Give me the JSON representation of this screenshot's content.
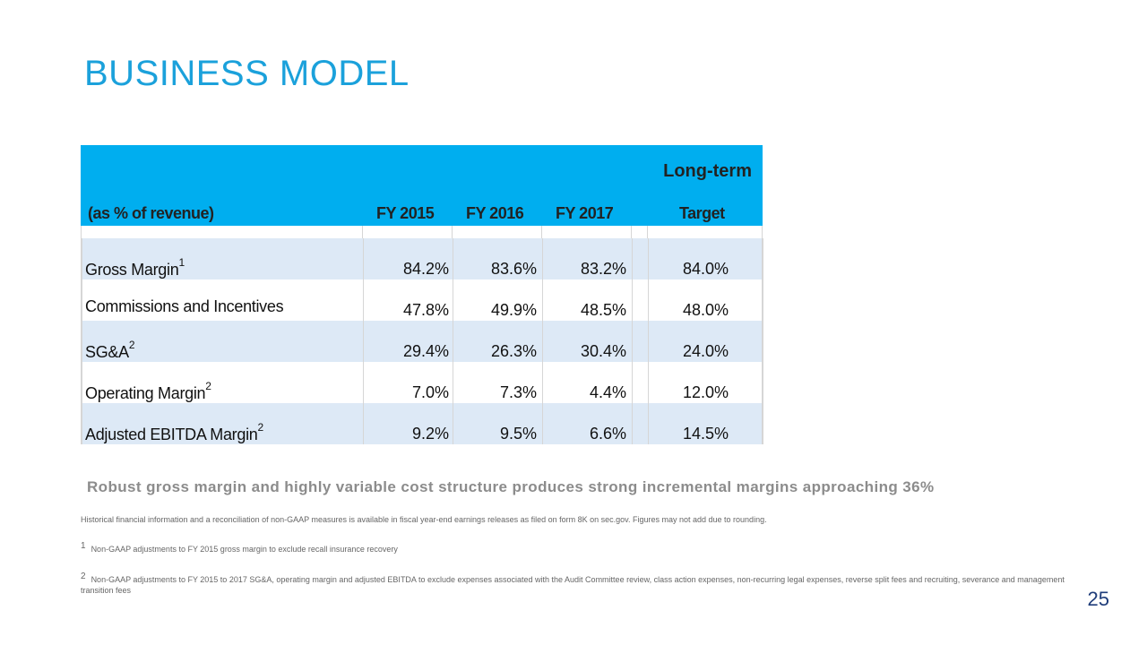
{
  "slide": {
    "title": "BUSINESS MODEL",
    "page_number": "25"
  },
  "table": {
    "long_term_label": "Long-term",
    "header": {
      "row_label": "(as % of revenue)",
      "col1": "FY 2015",
      "col2": "FY 2016",
      "col3": "FY 2017",
      "col4": "Target"
    },
    "rows": [
      {
        "label": "Gross Margin",
        "footnote": "1",
        "fy2015": "84.2%",
        "fy2016": "83.6%",
        "fy2017": "83.2%",
        "target": "84.0%"
      },
      {
        "label": "Commissions and Incentives",
        "footnote": "",
        "fy2015": "47.8%",
        "fy2016": "49.9%",
        "fy2017": "48.5%",
        "target": "48.0%"
      },
      {
        "label": "SG&A",
        "footnote": "2",
        "fy2015": "29.4%",
        "fy2016": "26.3%",
        "fy2017": "30.4%",
        "target": "24.0%"
      },
      {
        "label": "Operating Margin",
        "footnote": "2",
        "fy2015": "7.0%",
        "fy2016": "7.3%",
        "fy2017": "4.4%",
        "target": "12.0%"
      },
      {
        "label": "Adjusted EBITDA Margin",
        "footnote": "2",
        "fy2015": "9.2%",
        "fy2016": "9.5%",
        "fy2017": "6.6%",
        "target": "14.5%"
      }
    ],
    "header_color": "#00aeef",
    "alt_row_color": "#dde9f6"
  },
  "tagline": "Robust gross margin and highly variable cost structure produces strong incremental margins approaching 36%",
  "footnotes": {
    "general": "Historical financial information and a reconciliation of non-GAAP measures is available in fiscal year-end earnings releases as filed on form 8K on sec.gov. Figures may not add due to rounding.",
    "note1_marker": "1",
    "note1": "Non-GAAP adjustments to FY 2015 gross margin to exclude recall insurance recovery",
    "note2_marker": "2",
    "note2": "Non-GAAP adjustments to FY 2015 to 2017 SG&A, operating margin and adjusted EBITDA to exclude expenses associated with the Audit Committee review, class action expenses, non-recurring legal expenses, reverse split fees and recruiting, severance and management transition fees"
  },
  "colors": {
    "title": "#1ba1db",
    "page_number": "#1f3d7a"
  }
}
